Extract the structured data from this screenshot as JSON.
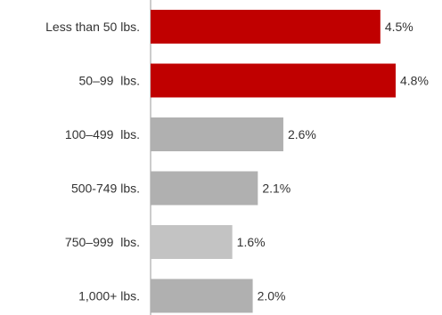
{
  "chart_data": {
    "type": "bar",
    "orientation": "horizontal",
    "categories": [
      "Less than 50 lbs.",
      "50–99  lbs.",
      "100–499  lbs.",
      "500-749 lbs.",
      "750–999  lbs.",
      "1,000+ lbs."
    ],
    "values": [
      4.5,
      4.8,
      2.6,
      2.1,
      1.6,
      2.0
    ],
    "value_labels": [
      "4.5%",
      "4.8%",
      "2.6%",
      "2.1%",
      "1.6%",
      "2.0%"
    ],
    "xlim": [
      0,
      4.8
    ],
    "grid": false,
    "legend": "none",
    "colors": {
      "highlight": "#c00000",
      "normal_dark": "#b0b0b0",
      "normal_light": "#c3c3c3",
      "axis": "#999999"
    },
    "bar_colors": [
      "highlight",
      "highlight",
      "normal_dark",
      "normal_dark",
      "normal_light",
      "normal_dark"
    ]
  }
}
